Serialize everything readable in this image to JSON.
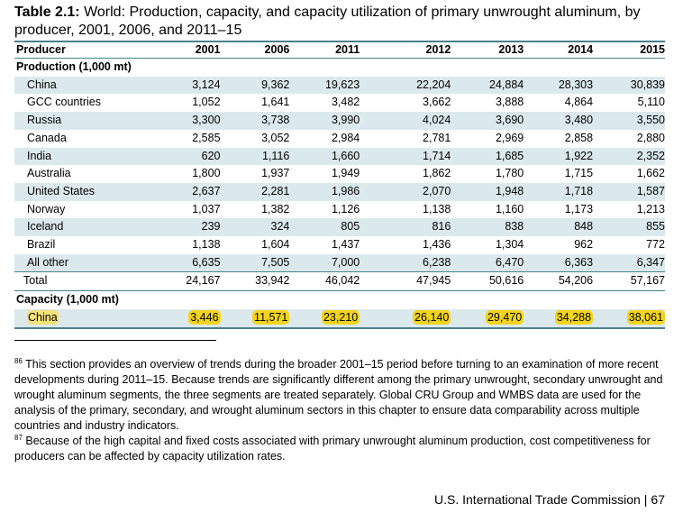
{
  "title": {
    "label": "Table 2.1:",
    "text": " World: Production, capacity, and capacity utilization of primary unwrought aluminum, by producer, 2001, 2006, and 2011–15"
  },
  "table": {
    "headers": [
      "Producer",
      "2001",
      "2006",
      "2011",
      "2012",
      "2013",
      "2014",
      "2015"
    ],
    "production_label": "Production (1,000 mt)",
    "production_rows": [
      {
        "name": "China",
        "values": [
          "3,124",
          "9,362",
          "19,623",
          "22,204",
          "24,884",
          "28,303",
          "30,839"
        ]
      },
      {
        "name": "GCC countries",
        "values": [
          "1,052",
          "1,641",
          "3,482",
          "3,662",
          "3,888",
          "4,864",
          "5,110"
        ]
      },
      {
        "name": "Russia",
        "values": [
          "3,300",
          "3,738",
          "3,990",
          "4,024",
          "3,690",
          "3,480",
          "3,550"
        ]
      },
      {
        "name": "Canada",
        "values": [
          "2,585",
          "3,052",
          "2,984",
          "2,781",
          "2,969",
          "2,858",
          "2,880"
        ]
      },
      {
        "name": "India",
        "values": [
          "620",
          "1,116",
          "1,660",
          "1,714",
          "1,685",
          "1,922",
          "2,352"
        ]
      },
      {
        "name": "Australia",
        "values": [
          "1,800",
          "1,937",
          "1,949",
          "1,862",
          "1,780",
          "1,715",
          "1,662"
        ]
      },
      {
        "name": "United States",
        "values": [
          "2,637",
          "2,281",
          "1,986",
          "2,070",
          "1,948",
          "1,718",
          "1,587"
        ]
      },
      {
        "name": "Norway",
        "values": [
          "1,037",
          "1,382",
          "1,126",
          "1,138",
          "1,160",
          "1,173",
          "1,213"
        ]
      },
      {
        "name": "Iceland",
        "values": [
          "239",
          "324",
          "805",
          "816",
          "838",
          "848",
          "855"
        ]
      },
      {
        "name": "Brazil",
        "values": [
          "1,138",
          "1,604",
          "1,437",
          "1,436",
          "1,304",
          "962",
          "772"
        ]
      },
      {
        "name": "All other",
        "values": [
          "6,635",
          "7,505",
          "7,000",
          "6,238",
          "6,470",
          "6,363",
          "6,347"
        ]
      }
    ],
    "total_row": {
      "name": "Total",
      "values": [
        "24,167",
        "33,942",
        "46,042",
        "47,945",
        "50,616",
        "54,206",
        "57,167"
      ]
    },
    "capacity_label": "Capacity (1,000 mt)",
    "capacity_rows": [
      {
        "name": "China",
        "values": [
          "3,446",
          "11,571",
          "23,210",
          "26,140",
          "29,470",
          "34,288",
          "38,061"
        ]
      }
    ]
  },
  "footnotes": [
    {
      "mark": "86",
      "text": " This section provides an overview of trends during the broader 2001–15 period before turning to an examination of more recent developments during 2011–15. Because trends are significantly different among the primary unwrought, secondary unwrought and wrought aluminum segments, the three segments are treated separately. Global CRU Group and WMBS data are used for the analysis of the primary, secondary, and wrought aluminum sectors in this chapter to ensure data comparability across multiple countries and industry indicators."
    },
    {
      "mark": "87",
      "text": " Because of the high capital and fixed costs associated with primary unwrought aluminum production, cost competitiveness for producers can be affected by capacity utilization rates."
    }
  ],
  "footer": {
    "agency": "U.S. International Trade Commission",
    "separator": "|",
    "page": "67"
  },
  "colors": {
    "rule": "#4a7f8c",
    "row_shade": "#dce9ec",
    "highlight": "#f2d41f"
  }
}
